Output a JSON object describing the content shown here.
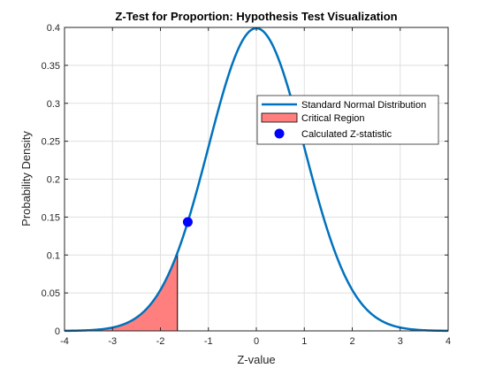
{
  "chart_data": {
    "type": "line",
    "title": "Z-Test for Proportion: Hypothesis Test Visualization",
    "xlabel": "Z-value",
    "ylabel": "Probability Density",
    "xlim": [
      -4,
      4
    ],
    "ylim": [
      0,
      0.4
    ],
    "xticks": [
      -4,
      -3,
      -2,
      -1,
      0,
      1,
      2,
      3,
      4
    ],
    "yticks": [
      0,
      0.05,
      0.1,
      0.15,
      0.2,
      0.25,
      0.3,
      0.35,
      0.4
    ],
    "xtick_labels": [
      "-4",
      "-3",
      "-2",
      "-1",
      "0",
      "1",
      "2",
      "3",
      "4"
    ],
    "ytick_labels": [
      "0",
      "0.05",
      "0.1",
      "0.15",
      "0.2",
      "0.25",
      "0.3",
      "0.35",
      "0.4"
    ],
    "grid": true,
    "legend_position": "top-right",
    "series": [
      {
        "name": "Standard Normal Distribution",
        "kind": "line",
        "function": "standard normal pdf",
        "x_range": [
          -4,
          4
        ],
        "color": "#0072BD"
      },
      {
        "name": "Critical Region",
        "kind": "area",
        "x_range": [
          -4,
          -1.645
        ],
        "fill_color": "#FF7F7F",
        "edge_color": "#000000"
      },
      {
        "name": "Calculated Z-statistic",
        "kind": "scatter",
        "x": -1.43,
        "y": 0.1435,
        "color": "#0000FF"
      }
    ]
  }
}
